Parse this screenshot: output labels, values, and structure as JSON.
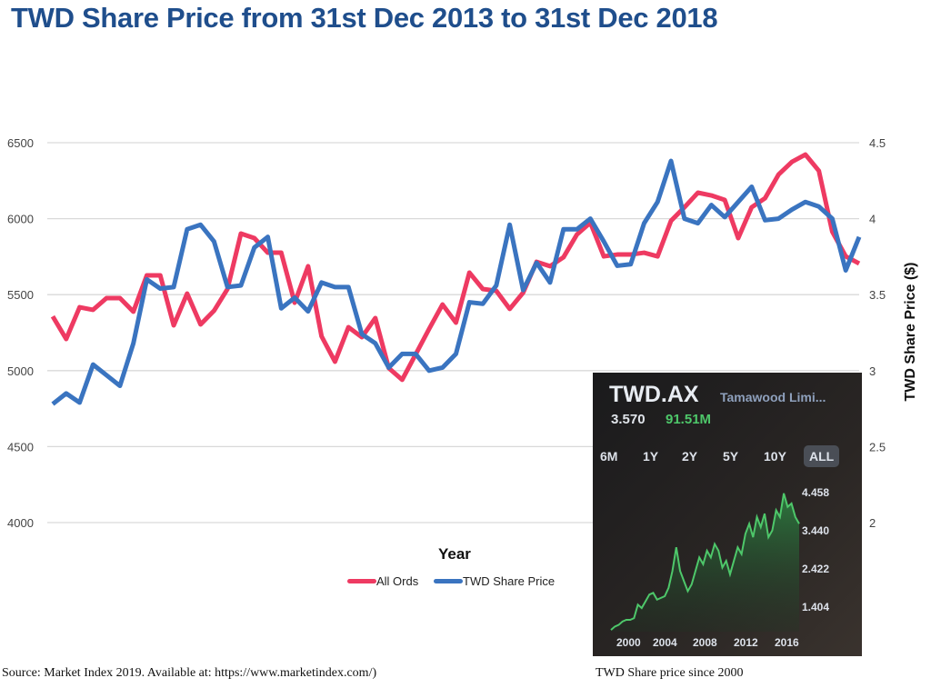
{
  "title": "TWD Share Price from 31st Dec 2013 to 31st Dec 2018",
  "source": "Source: Market Index 2019. Available at: https://www.marketindex.com/)",
  "colors": {
    "all_ords": "#ee3a62",
    "twd": "#3a74c0",
    "title": "#1f4e8c"
  },
  "chart_data": [
    {
      "type": "line",
      "title": "TWD Share Price from 31st Dec 2013 to 31st Dec 2018",
      "xlabel": "Year",
      "ylabel_right": "TWD Share Price ($)",
      "ylim_left": [
        4000,
        6500
      ],
      "yticks_left": [
        "6500",
        "6000",
        "5500",
        "5000",
        "4500",
        "4000"
      ],
      "ylim_right": [
        2,
        4.5
      ],
      "yticks_right": [
        "4.5",
        "4",
        "3.5",
        "3",
        "2.5",
        "2"
      ],
      "grid": true,
      "legend_position": "bottom",
      "series": [
        {
          "name": "All Ords",
          "axis": "left",
          "values": [
            5357,
            5208,
            5417,
            5400,
            5477,
            5477,
            5388,
            5627,
            5627,
            5298,
            5507,
            5304,
            5394,
            5537,
            5902,
            5872,
            5776,
            5776,
            5447,
            5687,
            5226,
            5059,
            5286,
            5220,
            5346,
            5017,
            4940,
            5107,
            5274,
            5435,
            5316,
            5645,
            5537,
            5525,
            5406,
            5513,
            5716,
            5687,
            5746,
            5896,
            5974,
            5752,
            5764,
            5764,
            5776,
            5752,
            5986,
            6075,
            6171,
            6153,
            6123,
            5872,
            6075,
            6135,
            6290,
            6374,
            6422,
            6315,
            5914,
            5752,
            5705
          ]
        },
        {
          "name": "TWD Share Price",
          "axis": "right",
          "values": [
            2.78,
            2.85,
            2.79,
            3.04,
            2.97,
            2.9,
            3.18,
            3.6,
            3.54,
            3.55,
            3.93,
            3.96,
            3.85,
            3.55,
            3.56,
            3.81,
            3.88,
            3.41,
            3.48,
            3.39,
            3.58,
            3.55,
            3.55,
            3.24,
            3.18,
            3.02,
            3.11,
            3.11,
            3.0,
            3.02,
            3.11,
            3.45,
            3.44,
            3.56,
            3.96,
            3.53,
            3.71,
            3.58,
            3.93,
            3.93,
            4.0,
            3.85,
            3.69,
            3.7,
            3.97,
            4.11,
            4.38,
            4.0,
            3.97,
            4.09,
            4.01,
            4.11,
            4.21,
            3.99,
            4.0,
            4.06,
            4.11,
            4.08,
            4.0,
            3.66,
            3.88
          ]
        }
      ]
    },
    {
      "type": "area",
      "title": "TWD.AX",
      "subtitle": "Tamawood Limi...",
      "price": "3.570",
      "market_cap": "91.51M",
      "ranges": [
        "6M",
        "1Y",
        "2Y",
        "5Y",
        "10Y",
        "ALL"
      ],
      "active_range": "ALL",
      "yticks": [
        "4.458",
        "3.440",
        "2.422",
        "1.404"
      ],
      "xticks": [
        "2000",
        "2004",
        "2008",
        "2012",
        "2016"
      ],
      "ylim": [
        0.4,
        4.9
      ],
      "x_range": [
        1999,
        2018.5
      ],
      "values": [
        0.45,
        0.55,
        0.6,
        0.7,
        0.75,
        0.75,
        0.8,
        1.2,
        1.1,
        1.3,
        1.5,
        1.55,
        1.35,
        1.4,
        1.45,
        1.7,
        2.2,
        2.9,
        2.2,
        1.9,
        1.6,
        1.8,
        2.2,
        2.6,
        2.4,
        2.8,
        2.6,
        3.0,
        2.8,
        2.3,
        2.5,
        2.1,
        2.5,
        2.9,
        2.7,
        3.3,
        3.6,
        3.2,
        3.8,
        3.5,
        3.9,
        3.2,
        3.4,
        4.0,
        3.8,
        4.5,
        4.1,
        4.2,
        3.8,
        3.6
      ],
      "caption": "TWD Share price since 2000",
      "color": "#4ec76a"
    }
  ]
}
